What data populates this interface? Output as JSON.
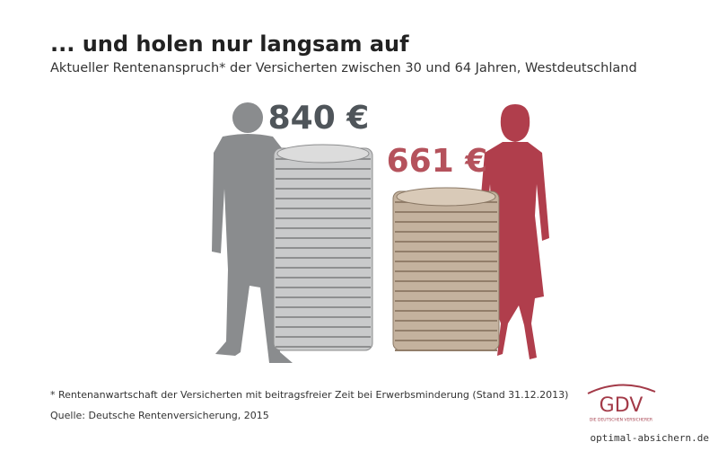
{
  "chart_data": {
    "type": "coin-stack",
    "title": "... und holen nur langsam auf",
    "subtitle": "Aktueller Rentenanspruch* der Versicherten zwischen 30 und 64 Jahren, Westdeutschland",
    "values": [
      840,
      661
    ],
    "value_labels": [
      "840 €",
      "661 €"
    ],
    "colors": [
      "#8a8c8e",
      "#b03e4c"
    ],
    "label_colors": [
      "#4f555a",
      "#b5525c"
    ],
    "footnote": "* Rentenanwartschaft der Versicherten mit beitragsfreier Zeit bei Erwerbsminderung (Stand 31.12.2013)",
    "source": "Quelle: Deutsche Rentenversicherung, 2015"
  },
  "logo": {
    "name": "GDV",
    "tagline": "DIE DEUTSCHEN VERSICHERER"
  },
  "watermark": "optimal-absichern.de"
}
